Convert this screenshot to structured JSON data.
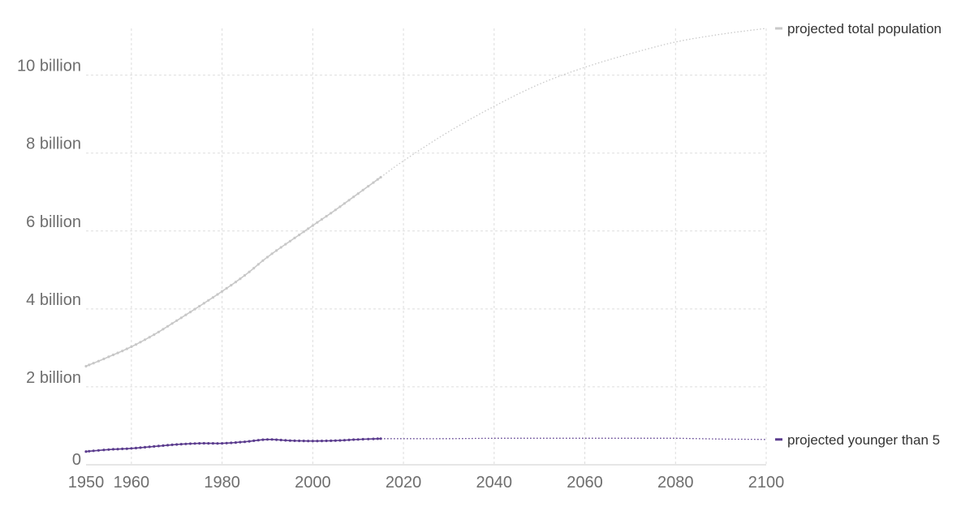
{
  "chart_data": {
    "type": "line",
    "title": "",
    "xlabel": "",
    "ylabel": "",
    "xlim": [
      1950,
      2100
    ],
    "ylim": [
      0,
      11200000000
    ],
    "x_ticks": [
      {
        "value": 1950,
        "label": "1950"
      },
      {
        "value": 1960,
        "label": "1960"
      },
      {
        "value": 1980,
        "label": "1980"
      },
      {
        "value": 2000,
        "label": "2000"
      },
      {
        "value": 2020,
        "label": "2020"
      },
      {
        "value": 2040,
        "label": "2040"
      },
      {
        "value": 2060,
        "label": "2060"
      },
      {
        "value": 2080,
        "label": "2080"
      },
      {
        "value": 2100,
        "label": "2100"
      }
    ],
    "y_ticks": [
      {
        "value": 0,
        "label": "0"
      },
      {
        "value": 2000000000,
        "label": "2 billion"
      },
      {
        "value": 4000000000,
        "label": "4 billion"
      },
      {
        "value": 6000000000,
        "label": "6 billion"
      },
      {
        "value": 8000000000,
        "label": "8 billion"
      },
      {
        "value": 10000000000,
        "label": "10 billion"
      }
    ],
    "grid": true,
    "series": [
      {
        "name": "projected total population",
        "color": "#c8c8c8",
        "observed": [
          [
            1950,
            2530000000
          ],
          [
            1955,
            2770000000
          ],
          [
            1960,
            3030000000
          ],
          [
            1965,
            3340000000
          ],
          [
            1970,
            3700000000
          ],
          [
            1975,
            4070000000
          ],
          [
            1980,
            4450000000
          ],
          [
            1985,
            4860000000
          ],
          [
            1990,
            5330000000
          ],
          [
            1995,
            5740000000
          ],
          [
            2000,
            6140000000
          ],
          [
            2005,
            6540000000
          ],
          [
            2010,
            6960000000
          ],
          [
            2015,
            7380000000
          ]
        ],
        "projected": [
          [
            2015,
            7380000000
          ],
          [
            2020,
            7800000000
          ],
          [
            2030,
            8550000000
          ],
          [
            2040,
            9200000000
          ],
          [
            2050,
            9770000000
          ],
          [
            2060,
            10200000000
          ],
          [
            2070,
            10550000000
          ],
          [
            2080,
            10850000000
          ],
          [
            2090,
            11050000000
          ],
          [
            2100,
            11200000000
          ]
        ]
      },
      {
        "name": "projected younger than 5",
        "color": "#5b3c8e",
        "observed": [
          [
            1950,
            340000000
          ],
          [
            1955,
            390000000
          ],
          [
            1960,
            420000000
          ],
          [
            1965,
            470000000
          ],
          [
            1970,
            520000000
          ],
          [
            1975,
            550000000
          ],
          [
            1980,
            550000000
          ],
          [
            1985,
            590000000
          ],
          [
            1990,
            650000000
          ],
          [
            1995,
            620000000
          ],
          [
            2000,
            610000000
          ],
          [
            2005,
            620000000
          ],
          [
            2010,
            650000000
          ],
          [
            2015,
            670000000
          ]
        ],
        "projected": [
          [
            2015,
            670000000
          ],
          [
            2020,
            670000000
          ],
          [
            2030,
            670000000
          ],
          [
            2040,
            680000000
          ],
          [
            2050,
            680000000
          ],
          [
            2060,
            680000000
          ],
          [
            2070,
            680000000
          ],
          [
            2080,
            680000000
          ],
          [
            2090,
            660000000
          ],
          [
            2100,
            650000000
          ]
        ]
      }
    ]
  }
}
